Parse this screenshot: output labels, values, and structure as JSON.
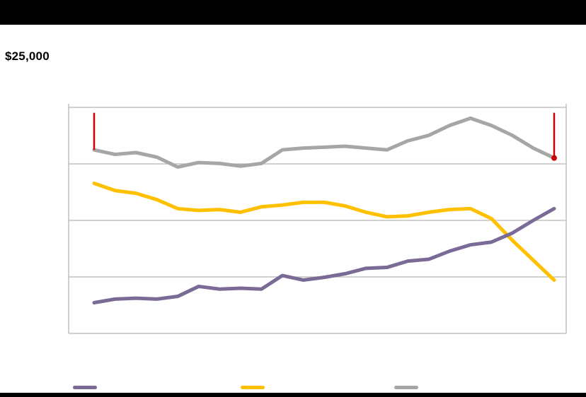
{
  "chart_data": {
    "type": "line",
    "title": "",
    "y_top_label": "$25,000",
    "ylim": [
      0,
      25000
    ],
    "gridline_values": [
      0,
      6250,
      12500,
      18750,
      25000
    ],
    "grid_color": "#b7b7b7",
    "marker_color": "#cc0000",
    "categories": null,
    "series": [
      {
        "name": "purple",
        "color": "#7a6a96",
        "values": [
          3400,
          3800,
          3900,
          3800,
          4100,
          5200,
          4900,
          5000,
          4900,
          6400,
          5900,
          6200,
          6600,
          7200,
          7300,
          8000,
          8200,
          9100,
          9800,
          10100,
          11100,
          12500,
          13800
        ]
      },
      {
        "name": "yellow",
        "color": "#ffc000",
        "values": [
          16600,
          15800,
          15500,
          14800,
          13800,
          13600,
          13700,
          13400,
          14000,
          14200,
          14500,
          14500,
          14100,
          13400,
          12900,
          13000,
          13400,
          13700,
          13800,
          12700,
          10300,
          8100,
          5900
        ]
      },
      {
        "name": "gray",
        "color": "#a6a6a6",
        "values": [
          20300,
          19800,
          20000,
          19500,
          18400,
          18900,
          18800,
          18500,
          18800,
          20300,
          20500,
          20600,
          20700,
          20500,
          20300,
          21300,
          21900,
          23000,
          23800,
          23000,
          21900,
          20500,
          19400
        ]
      }
    ],
    "red_markers": [
      {
        "point_index": 0,
        "value_top": 24400,
        "value_bottom": 20300,
        "dot": false
      },
      {
        "point_index": 22,
        "value_top": 24400,
        "value_bottom": 19400,
        "dot": true
      }
    ],
    "legend": {
      "position": "bottom",
      "entries": [
        "purple",
        "yellow",
        "gray"
      ]
    }
  }
}
